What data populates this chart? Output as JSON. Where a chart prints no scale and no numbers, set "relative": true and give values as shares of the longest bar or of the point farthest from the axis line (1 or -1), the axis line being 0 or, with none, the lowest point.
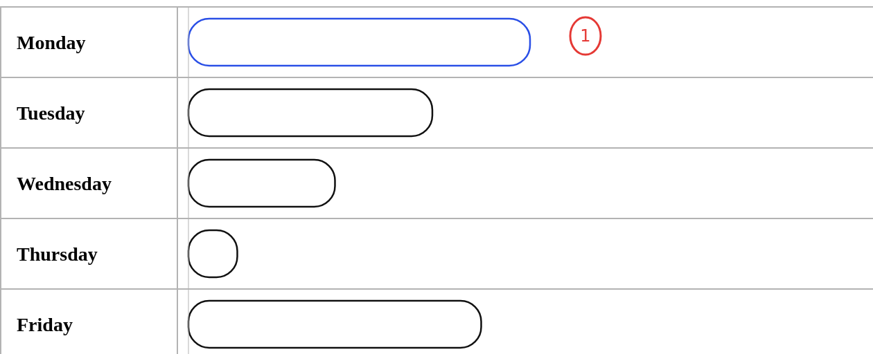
{
  "chart_data": {
    "type": "bar",
    "orientation": "horizontal",
    "relative": true,
    "categories": [
      "Monday",
      "Tuesday",
      "Wednesday",
      "Thursday",
      "Friday"
    ],
    "values": [
      1,
      0.714,
      0.429,
      0.143,
      0.857
    ],
    "colors": [
      "#2a4fe6",
      "#111111",
      "#111111",
      "#111111",
      "#111111"
    ],
    "annotations": [
      "1"
    ]
  }
}
